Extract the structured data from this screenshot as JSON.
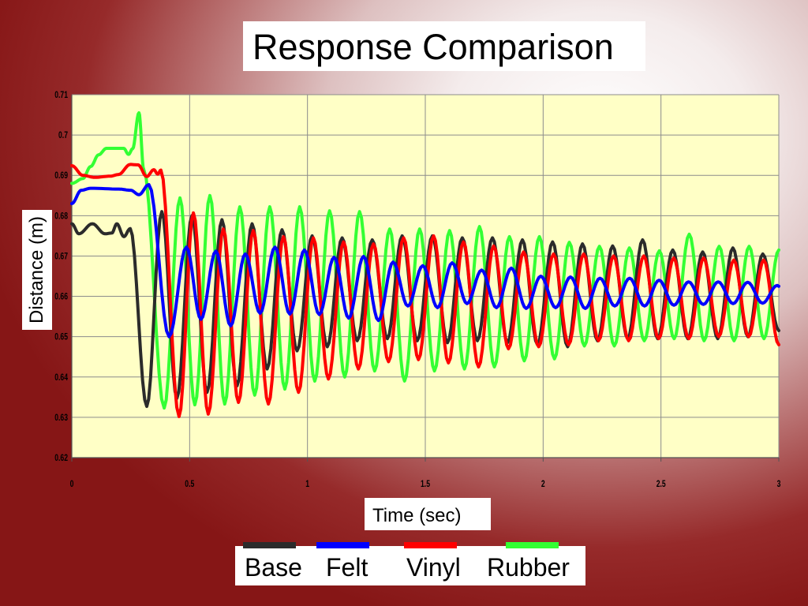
{
  "chart_data": {
    "type": "line",
    "title": "Response Comparison",
    "xlabel": "Time (sec)",
    "ylabel": "Distance (m)",
    "xlim": [
      0,
      3
    ],
    "ylim": [
      0.62,
      0.71
    ],
    "xticks": [
      0,
      0.5,
      1,
      1.5,
      2,
      2.5,
      3
    ],
    "xtick_labels": [
      "0",
      "0.5",
      "1",
      "1.5",
      "2",
      "2.5",
      "3"
    ],
    "yticks": [
      0.62,
      0.63,
      0.64,
      0.65,
      0.66,
      0.67,
      0.68,
      0.69,
      0.7,
      0.71
    ],
    "ytick_labels": [
      "0.62",
      "0.63",
      "0.64",
      "0.65",
      "0.66",
      "0.67",
      "0.68",
      "0.69",
      "0.7",
      "0.71"
    ],
    "grid": true,
    "legend_position": "bottom",
    "plot_background": "#ffffc6",
    "series": [
      {
        "name": "Base",
        "color": "#2b2b2b",
        "points": [
          [
            0,
            0.678
          ],
          [
            0.03,
            0.6755
          ],
          [
            0.087,
            0.678
          ],
          [
            0.141,
            0.6755
          ],
          [
            0.17,
            0.6757
          ],
          [
            0.191,
            0.678
          ],
          [
            0.221,
            0.6748
          ],
          [
            0.248,
            0.6768
          ],
          [
            0.318,
            0.6327
          ],
          [
            0.382,
            0.681
          ],
          [
            0.446,
            0.6347
          ],
          [
            0.51,
            0.68
          ],
          [
            0.574,
            0.6362
          ],
          [
            0.637,
            0.679
          ],
          [
            0.701,
            0.6378
          ],
          [
            0.765,
            0.678
          ],
          [
            0.829,
            0.642
          ],
          [
            0.892,
            0.6765
          ],
          [
            0.956,
            0.6465
          ],
          [
            1.02,
            0.675
          ],
          [
            1.084,
            0.6475
          ],
          [
            1.147,
            0.6745
          ],
          [
            1.211,
            0.649
          ],
          [
            1.275,
            0.674
          ],
          [
            1.339,
            0.6495
          ],
          [
            1.402,
            0.675
          ],
          [
            1.466,
            0.649
          ],
          [
            1.53,
            0.675
          ],
          [
            1.594,
            0.6485
          ],
          [
            1.657,
            0.6745
          ],
          [
            1.721,
            0.649
          ],
          [
            1.785,
            0.6745
          ],
          [
            1.849,
            0.6485
          ],
          [
            1.912,
            0.674
          ],
          [
            1.976,
            0.648
          ],
          [
            2.04,
            0.6735
          ],
          [
            2.104,
            0.6475
          ],
          [
            2.167,
            0.673
          ],
          [
            2.231,
            0.649
          ],
          [
            2.295,
            0.6725
          ],
          [
            2.359,
            0.6495
          ],
          [
            2.422,
            0.674
          ],
          [
            2.486,
            0.6495
          ],
          [
            2.55,
            0.6715
          ],
          [
            2.614,
            0.6495
          ],
          [
            2.677,
            0.671
          ],
          [
            2.741,
            0.6495
          ],
          [
            2.805,
            0.672
          ],
          [
            2.869,
            0.65
          ],
          [
            2.932,
            0.6705
          ],
          [
            3.0,
            0.6515
          ]
        ]
      },
      {
        "name": "Felt",
        "color": "#0000ff",
        "points": [
          [
            0,
            0.683
          ],
          [
            0.04,
            0.6863
          ],
          [
            0.08,
            0.6868
          ],
          [
            0.2,
            0.6866
          ],
          [
            0.25,
            0.6863
          ],
          [
            0.285,
            0.6852
          ],
          [
            0.327,
            0.6877
          ],
          [
            0.413,
            0.65
          ],
          [
            0.486,
            0.6722
          ],
          [
            0.548,
            0.6543
          ],
          [
            0.611,
            0.6712
          ],
          [
            0.674,
            0.6527
          ],
          [
            0.736,
            0.6705
          ],
          [
            0.799,
            0.6558
          ],
          [
            0.862,
            0.6722
          ],
          [
            0.925,
            0.6556
          ],
          [
            0.987,
            0.6715
          ],
          [
            1.05,
            0.6555
          ],
          [
            1.113,
            0.6697
          ],
          [
            1.175,
            0.6546
          ],
          [
            1.238,
            0.6699
          ],
          [
            1.301,
            0.654
          ],
          [
            1.363,
            0.6685
          ],
          [
            1.426,
            0.6576
          ],
          [
            1.489,
            0.6676
          ],
          [
            1.552,
            0.6572
          ],
          [
            1.614,
            0.6683
          ],
          [
            1.677,
            0.6582
          ],
          [
            1.739,
            0.6665
          ],
          [
            1.802,
            0.6572
          ],
          [
            1.865,
            0.667
          ],
          [
            1.928,
            0.657
          ],
          [
            1.99,
            0.665
          ],
          [
            2.053,
            0.6572
          ],
          [
            2.116,
            0.6648
          ],
          [
            2.179,
            0.657
          ],
          [
            2.241,
            0.6645
          ],
          [
            2.304,
            0.6576
          ],
          [
            2.367,
            0.6645
          ],
          [
            2.43,
            0.6576
          ],
          [
            2.492,
            0.664
          ],
          [
            2.555,
            0.6578
          ],
          [
            2.617,
            0.6636
          ],
          [
            2.68,
            0.658
          ],
          [
            2.743,
            0.6636
          ],
          [
            2.806,
            0.6582
          ],
          [
            2.868,
            0.6635
          ],
          [
            2.931,
            0.6583
          ],
          [
            2.993,
            0.6627
          ],
          [
            3.0,
            0.6625
          ]
        ]
      },
      {
        "name": "Vinyl",
        "color": "#ff0000",
        "points": [
          [
            0,
            0.6924
          ],
          [
            0.047,
            0.69
          ],
          [
            0.097,
            0.6895
          ],
          [
            0.164,
            0.6898
          ],
          [
            0.198,
            0.6902
          ],
          [
            0.248,
            0.6927
          ],
          [
            0.281,
            0.6926
          ],
          [
            0.318,
            0.6897
          ],
          [
            0.348,
            0.6914
          ],
          [
            0.365,
            0.6903
          ],
          [
            0.378,
            0.6913
          ],
          [
            0.455,
            0.6302
          ],
          [
            0.516,
            0.6807
          ],
          [
            0.579,
            0.6308
          ],
          [
            0.643,
            0.6767
          ],
          [
            0.707,
            0.6337
          ],
          [
            0.77,
            0.6763
          ],
          [
            0.834,
            0.6333
          ],
          [
            0.898,
            0.6748
          ],
          [
            0.962,
            0.6362
          ],
          [
            1.025,
            0.6745
          ],
          [
            1.089,
            0.6395
          ],
          [
            1.153,
            0.6735
          ],
          [
            1.216,
            0.642
          ],
          [
            1.28,
            0.673
          ],
          [
            1.344,
            0.6438
          ],
          [
            1.408,
            0.6745
          ],
          [
            1.471,
            0.6443
          ],
          [
            1.535,
            0.675
          ],
          [
            1.598,
            0.6435
          ],
          [
            1.662,
            0.6735
          ],
          [
            1.726,
            0.6425
          ],
          [
            1.79,
            0.6725
          ],
          [
            1.853,
            0.647
          ],
          [
            1.917,
            0.671
          ],
          [
            1.981,
            0.6475
          ],
          [
            2.044,
            0.6705
          ],
          [
            2.108,
            0.648
          ],
          [
            2.172,
            0.6705
          ],
          [
            2.235,
            0.649
          ],
          [
            2.299,
            0.67
          ],
          [
            2.363,
            0.649
          ],
          [
            2.427,
            0.67
          ],
          [
            2.49,
            0.6495
          ],
          [
            2.554,
            0.6695
          ],
          [
            2.618,
            0.6495
          ],
          [
            2.681,
            0.6695
          ],
          [
            2.745,
            0.65
          ],
          [
            2.809,
            0.669
          ],
          [
            2.872,
            0.65
          ],
          [
            2.936,
            0.669
          ],
          [
            3.0,
            0.648
          ]
        ]
      },
      {
        "name": "Rubber",
        "color": "#33ff33",
        "points": [
          [
            0,
            0.688
          ],
          [
            0.047,
            0.6892
          ],
          [
            0.08,
            0.6922
          ],
          [
            0.114,
            0.6951
          ],
          [
            0.147,
            0.6967
          ],
          [
            0.22,
            0.6967
          ],
          [
            0.241,
            0.6952
          ],
          [
            0.258,
            0.6966
          ],
          [
            0.285,
            0.7055
          ],
          [
            0.305,
            0.6915
          ],
          [
            0.392,
            0.6323
          ],
          [
            0.459,
            0.6844
          ],
          [
            0.522,
            0.6331
          ],
          [
            0.586,
            0.685
          ],
          [
            0.649,
            0.6333
          ],
          [
            0.713,
            0.6822
          ],
          [
            0.776,
            0.6355
          ],
          [
            0.84,
            0.6822
          ],
          [
            0.904,
            0.637
          ],
          [
            0.967,
            0.6822
          ],
          [
            1.031,
            0.639
          ],
          [
            1.094,
            0.6812
          ],
          [
            1.158,
            0.64
          ],
          [
            1.221,
            0.681
          ],
          [
            1.285,
            0.6415
          ],
          [
            1.349,
            0.6767
          ],
          [
            1.412,
            0.639
          ],
          [
            1.476,
            0.6767
          ],
          [
            1.539,
            0.6415
          ],
          [
            1.603,
            0.6763
          ],
          [
            1.666,
            0.642
          ],
          [
            1.73,
            0.6773
          ],
          [
            1.793,
            0.6425
          ],
          [
            1.857,
            0.6748
          ],
          [
            1.92,
            0.644
          ],
          [
            1.984,
            0.6748
          ],
          [
            2.048,
            0.6445
          ],
          [
            2.111,
            0.6734
          ],
          [
            2.175,
            0.6477
          ],
          [
            2.239,
            0.6724
          ],
          [
            2.302,
            0.6477
          ],
          [
            2.366,
            0.672
          ],
          [
            2.429,
            0.649
          ],
          [
            2.493,
            0.6713
          ],
          [
            2.556,
            0.6495
          ],
          [
            2.62,
            0.6754
          ],
          [
            2.683,
            0.649
          ],
          [
            2.747,
            0.6724
          ],
          [
            2.81,
            0.649
          ],
          [
            2.874,
            0.6724
          ],
          [
            2.937,
            0.6495
          ],
          [
            3.0,
            0.6715
          ]
        ]
      }
    ]
  }
}
